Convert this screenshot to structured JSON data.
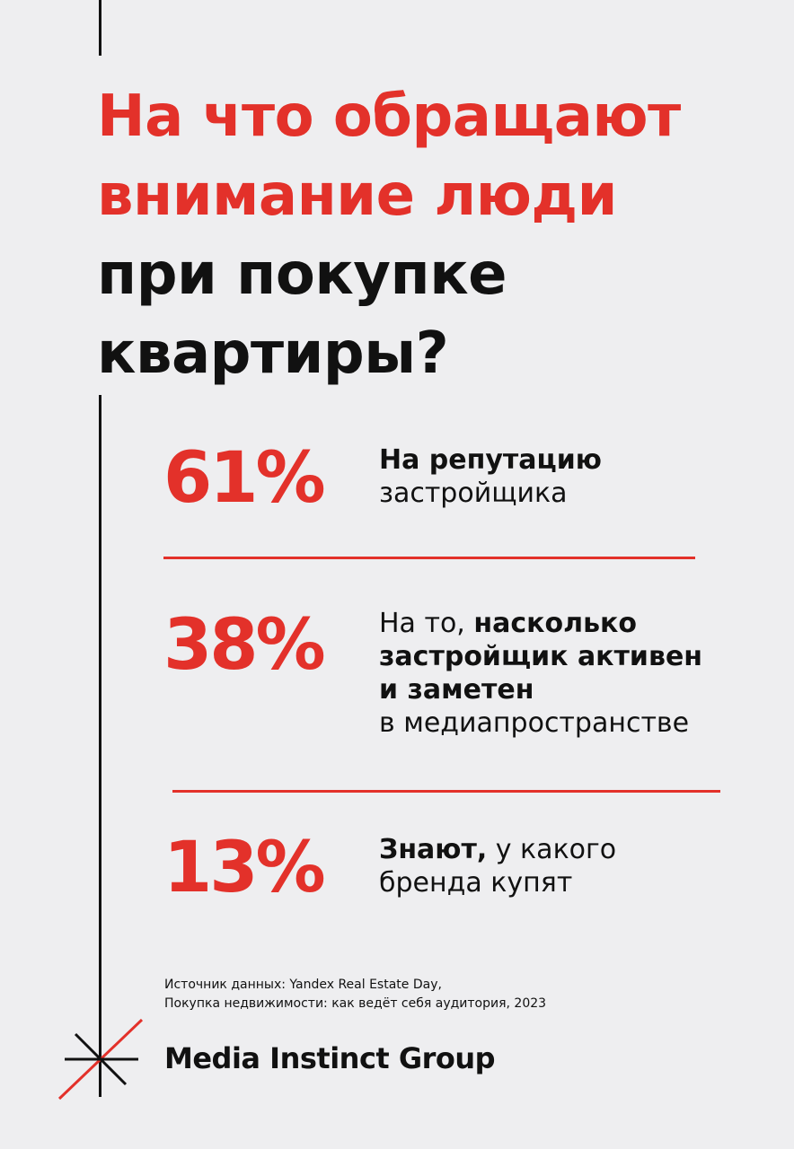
{
  "title": {
    "line1": "На что обращают",
    "line2": "внимание люди",
    "line3": "при покупке",
    "line4": "квартиры?"
  },
  "stats": [
    {
      "percent": "61%",
      "bold_1": "На репутацию",
      "regular_1": "застройщика"
    },
    {
      "percent": "38%",
      "regular_prefix": "На то, ",
      "bold_1": "насколько",
      "bold_2": "застройщик активен",
      "bold_3": "и заметен",
      "regular_1": "в медиапространстве"
    },
    {
      "percent": "13%",
      "bold_1": "Знают,",
      "regular_suffix": " у какого",
      "regular_1": "бренда купят"
    }
  ],
  "source": {
    "line1": "Источник данных: Yandex Real Estate Day,",
    "line2": "Покупка недвижимости: как ведёт себя аудитория, 2023"
  },
  "brand": {
    "name": "Media Instinct Group",
    "logo_icon": "starburst-logo-icon"
  },
  "colors": {
    "accent": "#e3312a",
    "text": "#111111",
    "background": "#eeeef0"
  }
}
